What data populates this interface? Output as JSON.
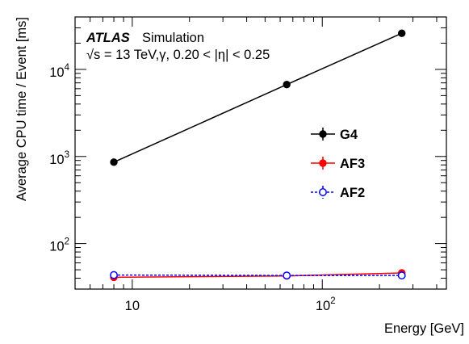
{
  "chart_data": {
    "type": "line",
    "annotation": {
      "experiment": "ATLAS",
      "label": "Simulation",
      "conditions_prefix": "√s = 13 TeV,",
      "particle": "γ",
      "eta_range_left": ", 0.20 < |",
      "eta_symbol": "η",
      "eta_range_right": "| < 0.25"
    },
    "xlabel": "Energy [GeV]",
    "ylabel": "Average CPU time / Event [ms]",
    "xscale": "log",
    "yscale": "log",
    "xlim": [
      5,
      450
    ],
    "ylim": [
      30,
      40000
    ],
    "x_tick_labels": [
      {
        "value": 10,
        "mantissa": "10",
        "exponent": ""
      },
      {
        "value": 100,
        "mantissa": "10",
        "exponent": "2"
      }
    ],
    "y_tick_labels": [
      {
        "value": 100,
        "mantissa": "10",
        "exponent": "2"
      },
      {
        "value": 1000,
        "mantissa": "10",
        "exponent": "3"
      },
      {
        "value": 10000,
        "mantissa": "10",
        "exponent": "4"
      }
    ],
    "grid": false,
    "legend_position": "right-middle",
    "series": [
      {
        "name": "G4",
        "x": [
          8,
          65,
          262
        ],
        "y": [
          860,
          6700,
          26000
        ],
        "color": "#000000",
        "marker": "filled-circle",
        "line": "solid"
      },
      {
        "name": "AF3",
        "x": [
          8,
          65,
          262
        ],
        "y": [
          41,
          42.5,
          46
        ],
        "color": "#ff0000",
        "marker": "filled-circle",
        "line": "solid"
      },
      {
        "name": "AF2",
        "x": [
          8,
          65,
          262
        ],
        "y": [
          43.5,
          43,
          43
        ],
        "color": "#0000ff",
        "marker": "open-circle",
        "line": "dashed"
      }
    ]
  }
}
